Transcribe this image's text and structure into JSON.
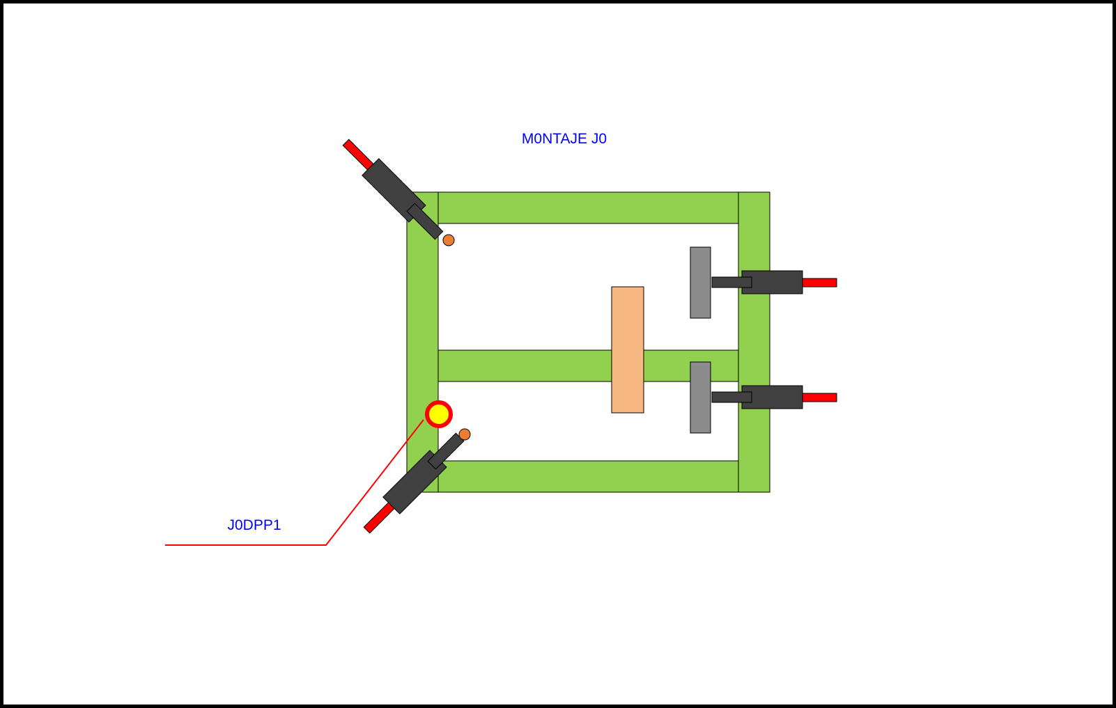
{
  "title": "M0NTAJE J0",
  "callout_label": "J0DPP1",
  "colors": {
    "frame": "#92d050",
    "actuator_body": "#404040",
    "actuator_rod": "#ff0000",
    "pin_tip": "#ed7d31",
    "clamp_pad": "#8c8c8c",
    "part": "#f8b882",
    "marker_fill": "#ffff00",
    "marker_ring": "#ff0000",
    "text": "#0000ff",
    "callout_line": "#ff0000"
  }
}
